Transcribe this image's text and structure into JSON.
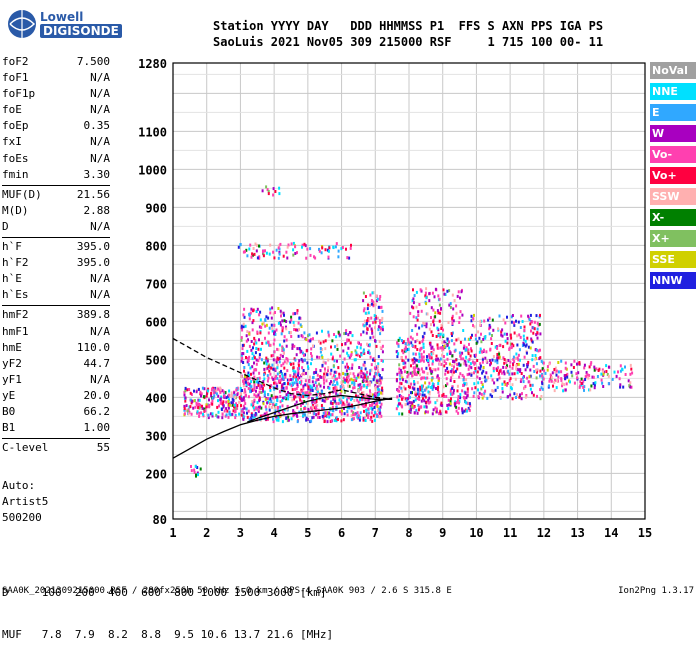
{
  "logo": {
    "line1": "Lowell",
    "line2": "DIGISONDE"
  },
  "header": {
    "line1": "Station YYYY DAY   DDD HHMMSS P1  FFS S AXN PPS IGA PS",
    "line2": "SaoLuis 2021 Nov05 309 215000 RSF     1 715 100 00- 11"
  },
  "params": [
    {
      "label": "foF2",
      "value": "7.500"
    },
    {
      "label": "foF1",
      "value": "N/A"
    },
    {
      "label": "foF1p",
      "value": "N/A"
    },
    {
      "label": "foE",
      "value": "N/A"
    },
    {
      "label": "foEp",
      "value": "0.35"
    },
    {
      "label": "fxI",
      "value": "N/A"
    },
    {
      "label": "foEs",
      "value": "N/A"
    },
    {
      "label": "fmin",
      "value": "3.30"
    },
    {
      "label": "MUF(D)",
      "value": "21.56"
    },
    {
      "label": "M(D)",
      "value": "2.88"
    },
    {
      "label": "D",
      "value": "N/A"
    },
    {
      "label": "h`F",
      "value": "395.0"
    },
    {
      "label": "h`F2",
      "value": "395.0"
    },
    {
      "label": "h`E",
      "value": "N/A"
    },
    {
      "label": "h`Es",
      "value": "N/A"
    },
    {
      "label": "hmF2",
      "value": "389.8"
    },
    {
      "label": "hmF1",
      "value": "N/A"
    },
    {
      "label": "hmE",
      "value": "110.0"
    },
    {
      "label": "yF2",
      "value": "44.7"
    },
    {
      "label": "yF1",
      "value": "N/A"
    },
    {
      "label": "yE",
      "value": "20.0"
    },
    {
      "label": "B0",
      "value": "66.2"
    },
    {
      "label": "B1",
      "value": "1.00"
    },
    {
      "label": "C-level",
      "value": "55"
    }
  ],
  "auto": {
    "line1": "Auto:",
    "line2": "Artist5",
    "line3": "500200"
  },
  "legend": [
    {
      "label": "NoVal",
      "color": "#a0a0a0"
    },
    {
      "label": "NNE",
      "color": "#00e0ff"
    },
    {
      "label": "E",
      "color": "#30a8ff"
    },
    {
      "label": "W",
      "color": "#a800c0"
    },
    {
      "label": "Vo-",
      "color": "#ff40b0"
    },
    {
      "label": "Vo+",
      "color": "#ff0040"
    },
    {
      "label": "SSW",
      "color": "#ffb0b0"
    },
    {
      "label": "X-",
      "color": "#008000"
    },
    {
      "label": "X+",
      "color": "#80c060"
    },
    {
      "label": "SSE",
      "color": "#d0d000"
    },
    {
      "label": "NNW",
      "color": "#2020e0"
    }
  ],
  "dmuf": {
    "d_line": "D     100  200  400  600  800 1000 1500 3000 [km]",
    "muf_line": "MUF   7.8  7.9  8.2  8.8  9.5 10.6 13.7 21.6 [MHz]"
  },
  "footer": {
    "left": "SAA0K_2021309215000.RSF / 280fx256h 50 kHz 5.0 km / DPS-4 SAA0K 903 / 2.6 S 315.8 E",
    "right": "Ion2Png 1.3.17"
  },
  "chart_data": {
    "type": "scatter",
    "xlabel": "",
    "ylabel": "",
    "xlim": [
      1,
      15
    ],
    "ylim": [
      80,
      1280
    ],
    "x_ticks": [
      1,
      2,
      3,
      4,
      5,
      6,
      7,
      8,
      9,
      10,
      11,
      12,
      13,
      14,
      15
    ],
    "y_ticks": [
      80,
      200,
      300,
      400,
      500,
      600,
      700,
      800,
      900,
      1000,
      1100,
      1280
    ],
    "grid": true,
    "series": [
      {
        "type": "line",
        "values_x": [
          1.0,
          1.5,
          2.0,
          2.5,
          3.0,
          3.5,
          4.0,
          4.5,
          5.0,
          5.5,
          6.0,
          6.5,
          7.0,
          7.5
        ],
        "values_y": [
          240,
          265,
          290,
          310,
          328,
          340,
          350,
          357,
          362,
          367,
          372,
          380,
          390,
          398
        ]
      },
      {
        "type": "dashed",
        "values_x": [
          1.0,
          1.5,
          2.0,
          2.5,
          3.0,
          3.5,
          4.0,
          4.5,
          5.0,
          5.5,
          6.0,
          6.5,
          7.0,
          7.5
        ],
        "values_y": [
          555,
          530,
          505,
          485,
          465,
          445,
          425,
          410,
          405,
          410,
          420,
          410,
          400,
          395
        ]
      },
      {
        "type": "line",
        "values_x": [
          3.2,
          3.5,
          4.0,
          4.5,
          5.0,
          5.5,
          6.0,
          6.5,
          7.0,
          7.5
        ],
        "values_y": [
          335,
          345,
          360,
          375,
          390,
          400,
          405,
          400,
          395,
          395
        ]
      }
    ]
  }
}
